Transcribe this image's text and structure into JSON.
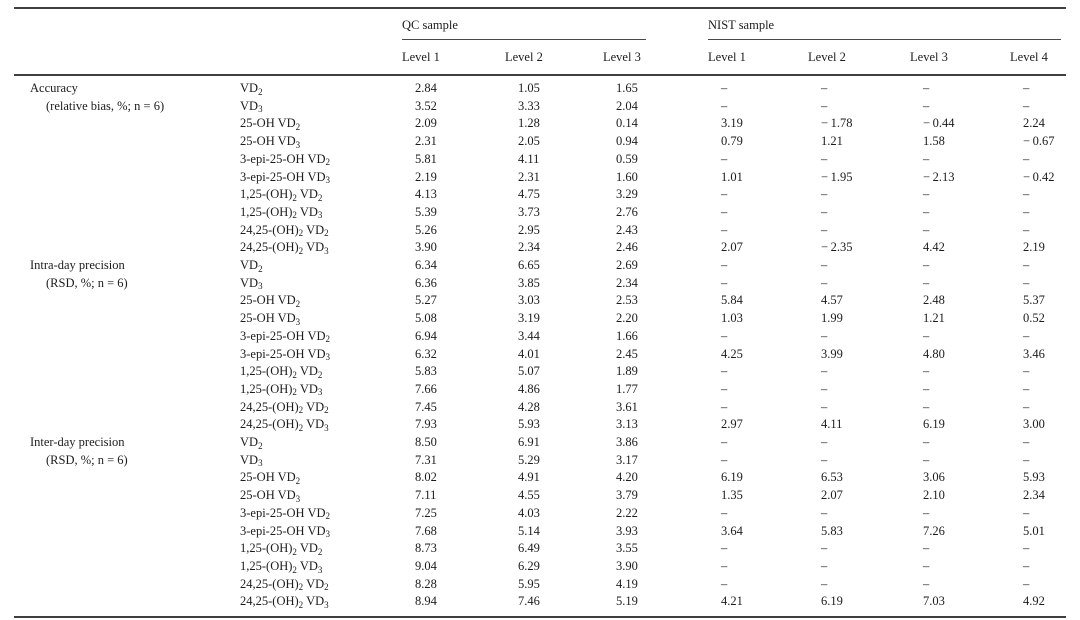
{
  "table": {
    "column_groups": {
      "qc": "QC sample",
      "nist": "NIST sample"
    },
    "level_headers": {
      "qc": [
        "Level 1",
        "Level 2",
        "Level 3"
      ],
      "nist": [
        "Level 1",
        "Level 2",
        "Level 3",
        "Level 4"
      ]
    },
    "sections": [
      {
        "label": "Accuracy",
        "note": "(relative bias, %; n = 6)",
        "rows": [
          {
            "analyte": "VD₂",
            "values": [
              "2.84",
              "1.05",
              "1.65",
              "–",
              "–",
              "–",
              "–"
            ]
          },
          {
            "analyte": "VD₃",
            "values": [
              "3.52",
              "3.33",
              "2.04",
              "–",
              "–",
              "–",
              "–"
            ]
          },
          {
            "analyte": "25-OH VD₂",
            "values": [
              "2.09",
              "1.28",
              "0.14",
              "3.19",
              "− 1.78",
              "− 0.44",
              "2.24"
            ]
          },
          {
            "analyte": "25-OH VD₃",
            "values": [
              "2.31",
              "2.05",
              "0.94",
              "0.79",
              "1.21",
              "1.58",
              "− 0.67"
            ]
          },
          {
            "analyte": "3-epi-25-OH VD₂",
            "values": [
              "5.81",
              "4.11",
              "0.59",
              "–",
              "–",
              "–",
              "–"
            ]
          },
          {
            "analyte": "3-epi-25-OH VD₃",
            "values": [
              "2.19",
              "2.31",
              "1.60",
              "1.01",
              "− 1.95",
              "− 2.13",
              "− 0.42"
            ]
          },
          {
            "analyte": "1,25-(OH)₂ VD₂",
            "values": [
              "4.13",
              "4.75",
              "3.29",
              "–",
              "–",
              "–",
              "–"
            ]
          },
          {
            "analyte": "1,25-(OH)₂ VD₃",
            "values": [
              "5.39",
              "3.73",
              "2.76",
              "–",
              "–",
              "–",
              "–"
            ]
          },
          {
            "analyte": "24,25-(OH)₂ VD₂",
            "values": [
              "5.26",
              "2.95",
              "2.43",
              "–",
              "–",
              "–",
              "–"
            ]
          },
          {
            "analyte": "24,25-(OH)₂ VD₃",
            "values": [
              "3.90",
              "2.34",
              "2.46",
              "2.07",
              "− 2.35",
              "4.42",
              "2.19"
            ]
          }
        ]
      },
      {
        "label": "Intra-day precision",
        "note": "(RSD, %; n = 6)",
        "rows": [
          {
            "analyte": "VD₂",
            "values": [
              "6.34",
              "6.65",
              "2.69",
              "–",
              "–",
              "–",
              "–"
            ]
          },
          {
            "analyte": "VD₃",
            "values": [
              "6.36",
              "3.85",
              "2.34",
              "–",
              "–",
              "–",
              "–"
            ]
          },
          {
            "analyte": "25-OH VD₂",
            "values": [
              "5.27",
              "3.03",
              "2.53",
              "5.84",
              "4.57",
              "2.48",
              "5.37"
            ]
          },
          {
            "analyte": "25-OH VD₃",
            "values": [
              "5.08",
              "3.19",
              "2.20",
              "1.03",
              "1.99",
              "1.21",
              "0.52"
            ]
          },
          {
            "analyte": "3-epi-25-OH VD₂",
            "values": [
              "6.94",
              "3.44",
              "1.66",
              "–",
              "–",
              "–",
              "–"
            ]
          },
          {
            "analyte": "3-epi-25-OH VD₃",
            "values": [
              "6.32",
              "4.01",
              "2.45",
              "4.25",
              "3.99",
              "4.80",
              "3.46"
            ]
          },
          {
            "analyte": "1,25-(OH)₂ VD₂",
            "values": [
              "5.83",
              "5.07",
              "1.89",
              "–",
              "–",
              "–",
              "–"
            ]
          },
          {
            "analyte": "1,25-(OH)₂ VD₃",
            "values": [
              "7.66",
              "4.86",
              "1.77",
              "–",
              "–",
              "–",
              "–"
            ]
          },
          {
            "analyte": "24,25-(OH)₂ VD₂",
            "values": [
              "7.45",
              "4.28",
              "3.61",
              "–",
              "–",
              "–",
              "–"
            ]
          },
          {
            "analyte": "24,25-(OH)₂ VD₃",
            "values": [
              "7.93",
              "5.93",
              "3.13",
              "2.97",
              "4.11",
              "6.19",
              "3.00"
            ]
          }
        ]
      },
      {
        "label": "Inter-day precision",
        "note": "(RSD, %; n = 6)",
        "rows": [
          {
            "analyte": "VD₂",
            "values": [
              "8.50",
              "6.91",
              "3.86",
              "–",
              "–",
              "–",
              "–"
            ]
          },
          {
            "analyte": "VD₃",
            "values": [
              "7.31",
              "5.29",
              "3.17",
              "–",
              "–",
              "–",
              "–"
            ]
          },
          {
            "analyte": "25-OH VD₂",
            "values": [
              "8.02",
              "4.91",
              "4.20",
              "6.19",
              "6.53",
              "3.06",
              "5.93"
            ]
          },
          {
            "analyte": "25-OH VD₃",
            "values": [
              "7.11",
              "4.55",
              "3.79",
              "1.35",
              "2.07",
              "2.10",
              "2.34"
            ]
          },
          {
            "analyte": "3-epi-25-OH VD₂",
            "values": [
              "7.25",
              "4.03",
              "2.22",
              "–",
              "–",
              "–",
              "–"
            ]
          },
          {
            "analyte": "3-epi-25-OH VD₃",
            "values": [
              "7.68",
              "5.14",
              "3.93",
              "3.64",
              "5.83",
              "7.26",
              "5.01"
            ]
          },
          {
            "analyte": "1,25-(OH)₂ VD₂",
            "values": [
              "8.73",
              "6.49",
              "3.55",
              "–",
              "–",
              "–",
              "–"
            ]
          },
          {
            "analyte": "1,25-(OH)₂ VD₃",
            "values": [
              "9.04",
              "6.29",
              "3.90",
              "–",
              "–",
              "–",
              "–"
            ]
          },
          {
            "analyte": "24,25-(OH)₂ VD₂",
            "values": [
              "8.28",
              "5.95",
              "4.19",
              "–",
              "–",
              "–",
              "–"
            ]
          },
          {
            "analyte": "24,25-(OH)₂ VD₃",
            "values": [
              "8.94",
              "7.46",
              "5.19",
              "4.21",
              "6.19",
              "7.03",
              "4.92"
            ]
          }
        ]
      }
    ]
  }
}
